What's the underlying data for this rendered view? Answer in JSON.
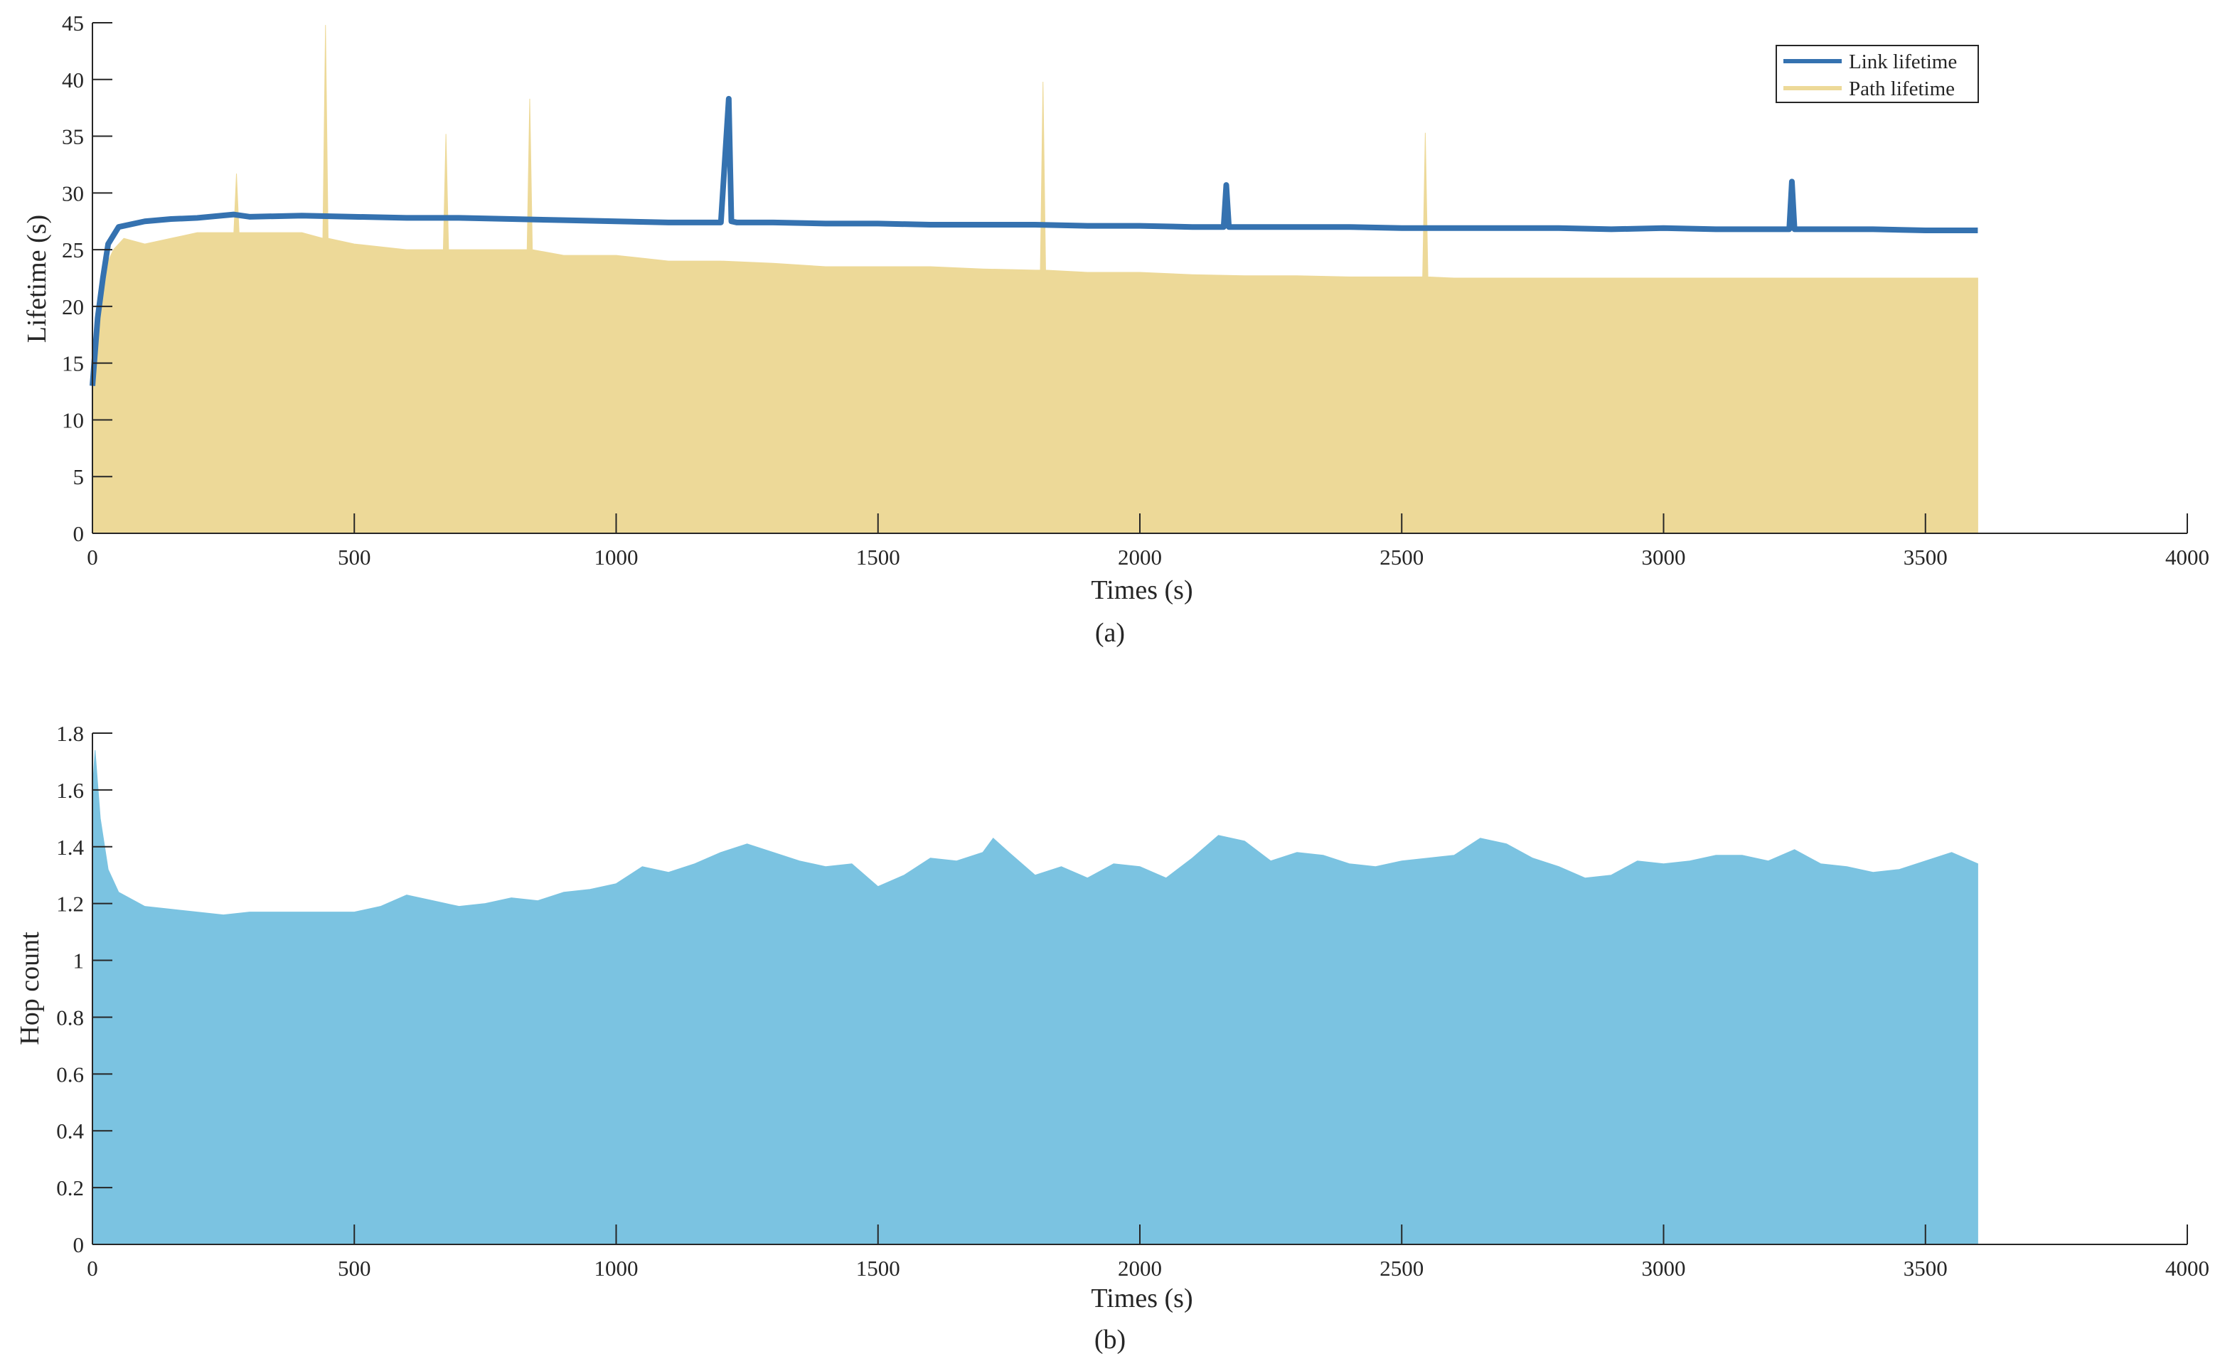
{
  "chart_data": [
    {
      "type": "area",
      "panel_caption": "(a)",
      "xlabel": "Times (s)",
      "ylabel": "Lifetime (s)",
      "xlim": [
        0,
        4000
      ],
      "ylim": [
        0,
        45
      ],
      "xticks": [
        0,
        500,
        1000,
        1500,
        2000,
        2500,
        3000,
        3500,
        4000
      ],
      "yticks": [
        0,
        5,
        10,
        15,
        20,
        25,
        30,
        35,
        40,
        45
      ],
      "legend_position": "top-right",
      "grid": false,
      "series": [
        {
          "name": "Link lifetime",
          "style": "line",
          "color": "#3572B0",
          "x": [
            0,
            10,
            20,
            30,
            50,
            100,
            150,
            200,
            270,
            300,
            400,
            500,
            600,
            700,
            800,
            900,
            1000,
            1100,
            1200,
            1215,
            1220,
            1230,
            1300,
            1400,
            1500,
            1600,
            1700,
            1800,
            1900,
            2000,
            2100,
            2160,
            2165,
            2170,
            2200,
            2300,
            2400,
            2500,
            2600,
            2700,
            2800,
            2900,
            3000,
            3100,
            3200,
            3240,
            3245,
            3250,
            3300,
            3400,
            3500,
            3600
          ],
          "y": [
            13,
            19,
            22.5,
            25.5,
            27,
            27.5,
            27.7,
            27.8,
            28.1,
            27.9,
            28.0,
            27.9,
            27.8,
            27.8,
            27.7,
            27.6,
            27.5,
            27.4,
            27.4,
            38.3,
            27.5,
            27.4,
            27.4,
            27.3,
            27.3,
            27.2,
            27.2,
            27.2,
            27.1,
            27.1,
            27.0,
            27.0,
            30.7,
            27.0,
            27.0,
            27.0,
            27.0,
            26.9,
            26.9,
            26.9,
            26.9,
            26.8,
            26.9,
            26.8,
            26.8,
            26.8,
            31.0,
            26.8,
            26.8,
            26.8,
            26.7,
            26.7
          ]
        },
        {
          "name": "Path lifetime",
          "style": "area",
          "color": "#EDD998",
          "x": [
            0,
            10,
            20,
            30,
            40,
            60,
            100,
            150,
            200,
            270,
            275,
            280,
            300,
            350,
            400,
            440,
            445,
            450,
            500,
            600,
            670,
            675,
            680,
            700,
            800,
            830,
            835,
            840,
            900,
            1000,
            1100,
            1200,
            1300,
            1400,
            1500,
            1600,
            1700,
            1800,
            1810,
            1815,
            1820,
            1900,
            2000,
            2100,
            2200,
            2300,
            2400,
            2500,
            2540,
            2545,
            2550,
            2600,
            2700,
            2800,
            2900,
            3000,
            3100,
            3200,
            3300,
            3400,
            3500,
            3600
          ],
          "y": [
            16,
            20,
            22,
            24,
            25,
            26,
            25.5,
            26,
            26.5,
            26.5,
            31.7,
            26.5,
            26.5,
            26.5,
            26.5,
            26,
            44.8,
            26,
            25.5,
            25,
            25,
            35.2,
            25,
            25,
            25,
            25,
            38.3,
            25,
            24.5,
            24.5,
            24,
            24,
            23.8,
            23.5,
            23.5,
            23.5,
            23.3,
            23.2,
            23.2,
            39.8,
            23.2,
            23,
            23,
            22.8,
            22.7,
            22.7,
            22.6,
            22.6,
            22.6,
            35.3,
            22.6,
            22.5,
            22.5,
            22.5,
            22.5,
            22.5,
            22.5,
            22.5,
            22.5,
            22.5,
            22.5,
            22.5
          ]
        }
      ]
    },
    {
      "type": "area",
      "panel_caption": "(b)",
      "xlabel": "Times (s)",
      "ylabel": "Hop count",
      "xlim": [
        0,
        4000
      ],
      "ylim": [
        0,
        1.8
      ],
      "xticks": [
        0,
        500,
        1000,
        1500,
        2000,
        2500,
        3000,
        3500,
        4000
      ],
      "yticks": [
        0,
        0.2,
        0.4,
        0.6,
        0.8,
        1,
        1.2,
        1.4,
        1.6,
        1.8
      ],
      "grid": false,
      "series": [
        {
          "style": "area",
          "color": "#7BC3E1",
          "x": [
            0,
            5,
            15,
            30,
            50,
            100,
            150,
            200,
            250,
            300,
            350,
            400,
            450,
            500,
            550,
            600,
            650,
            700,
            750,
            800,
            850,
            900,
            950,
            1000,
            1050,
            1100,
            1150,
            1200,
            1250,
            1300,
            1350,
            1400,
            1450,
            1500,
            1550,
            1600,
            1650,
            1700,
            1720,
            1750,
            1800,
            1850,
            1900,
            1950,
            2000,
            2050,
            2100,
            2150,
            2200,
            2250,
            2300,
            2350,
            2400,
            2450,
            2500,
            2550,
            2600,
            2650,
            2700,
            2750,
            2800,
            2850,
            2900,
            2950,
            3000,
            3050,
            3100,
            3150,
            3200,
            3250,
            3300,
            3350,
            3400,
            3450,
            3500,
            3550,
            3600
          ],
          "y": [
            1.6,
            1.74,
            1.5,
            1.32,
            1.24,
            1.19,
            1.18,
            1.17,
            1.16,
            1.17,
            1.17,
            1.17,
            1.17,
            1.17,
            1.19,
            1.23,
            1.21,
            1.19,
            1.2,
            1.22,
            1.21,
            1.24,
            1.25,
            1.27,
            1.33,
            1.31,
            1.34,
            1.38,
            1.41,
            1.38,
            1.35,
            1.33,
            1.34,
            1.26,
            1.3,
            1.36,
            1.35,
            1.38,
            1.43,
            1.38,
            1.3,
            1.33,
            1.29,
            1.34,
            1.33,
            1.29,
            1.36,
            1.44,
            1.42,
            1.35,
            1.38,
            1.37,
            1.34,
            1.33,
            1.35,
            1.36,
            1.37,
            1.43,
            1.41,
            1.36,
            1.33,
            1.29,
            1.3,
            1.35,
            1.34,
            1.35,
            1.37,
            1.37,
            1.35,
            1.39,
            1.34,
            1.33,
            1.31,
            1.32,
            1.35,
            1.38,
            1.34
          ]
        }
      ]
    }
  ]
}
